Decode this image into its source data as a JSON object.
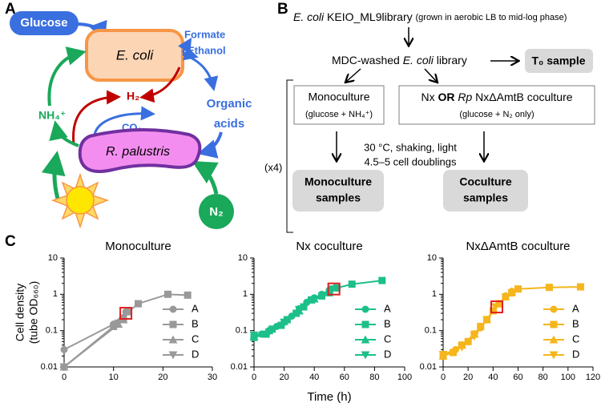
{
  "panel_a": {
    "label": "A",
    "glucose": "Glucose",
    "ecoli": "E. coli",
    "formate": "Formate",
    "ethanol": "Ethanol",
    "organic_acids": [
      "Organic",
      "acids"
    ],
    "h2": "H₂",
    "co2": "CO₂",
    "nh4": "NH₄⁺",
    "rpal": "R. palustris",
    "n2": "N₂"
  },
  "panel_b": {
    "label": "B",
    "library": [
      "E. coli",
      " KEIO_ML9library ",
      "(grown in aerobic LB to mid-log phase)"
    ],
    "washed": [
      "MDC-washed ",
      "E. coli",
      " library"
    ],
    "t0": "T₀ sample",
    "mono_box": [
      "Monoculture",
      "(glucose + NH₄⁺)"
    ],
    "co_box": [
      "Nx ",
      "OR",
      " Rp",
      " NxΔAmtB coculture",
      "(glucose + N₂ only)"
    ],
    "repeat": "(x4)",
    "conditions": [
      "30 °C, shaking, light",
      "4.5–5 cell doublings"
    ],
    "mono_samples": [
      "Monoculture",
      "samples"
    ],
    "co_samples": [
      "Coculture",
      "samples"
    ]
  },
  "panel_c_label": "C",
  "chart_data": [
    {
      "type": "line",
      "title": "Monoculture",
      "ylabel": [
        "Cell density",
        "(tube OD₆₆₀)"
      ],
      "log_y": true,
      "xlim": [
        0,
        30
      ],
      "xticks": [
        0,
        10,
        20,
        30
      ],
      "ylim": [
        0.01,
        10
      ],
      "yticks": [
        0.01,
        0.1,
        1,
        10
      ],
      "legend": "lower right",
      "series": [
        {
          "name": "A",
          "color": "#999999",
          "marker": "circle",
          "x": [
            0,
            10,
            12.5
          ],
          "values": [
            0.03,
            0.15,
            0.33
          ]
        },
        {
          "name": "B",
          "color": "#999999",
          "marker": "square",
          "x": [
            0,
            10,
            12,
            13,
            15,
            21,
            25
          ],
          "values": [
            0.01,
            0.13,
            0.2,
            0.33,
            0.55,
            1.0,
            0.95
          ]
        },
        {
          "name": "C",
          "color": "#999999",
          "marker": "triangle-up",
          "x": [
            0,
            11,
            12
          ],
          "values": [
            0.01,
            0.15,
            0.2
          ]
        },
        {
          "name": "D",
          "color": "#999999",
          "marker": "triangle-down",
          "x": [
            0,
            11,
            12
          ],
          "values": [
            0.01,
            0.16,
            0.22
          ]
        }
      ],
      "sampled_at": {
        "x": 12.5,
        "y": 0.3,
        "color": "#e02020"
      }
    },
    {
      "type": "line",
      "title": "Nx coculture",
      "xlabel": "Time (h)",
      "log_y": true,
      "xlim": [
        0,
        100
      ],
      "xticks": [
        0,
        20,
        40,
        60,
        80,
        100
      ],
      "ylim": [
        0.01,
        10
      ],
      "yticks": [
        0.01,
        0.1,
        1,
        10
      ],
      "legend": "lower right",
      "series": [
        {
          "name": "A",
          "color": "#1dbf8a",
          "marker": "circle",
          "x": [
            0,
            5,
            10,
            15,
            20,
            25,
            30,
            35,
            40,
            45,
            50,
            55
          ],
          "values": [
            0.07,
            0.08,
            0.1,
            0.13,
            0.17,
            0.25,
            0.4,
            0.6,
            0.8,
            1.0,
            1.3,
            1.5
          ]
        },
        {
          "name": "B",
          "color": "#1dbf8a",
          "marker": "square",
          "x": [
            0,
            8,
            12,
            18,
            22,
            28,
            33,
            38,
            45,
            50,
            55,
            65,
            85
          ],
          "values": [
            0.065,
            0.08,
            0.11,
            0.14,
            0.2,
            0.3,
            0.45,
            0.7,
            0.9,
            1.1,
            1.5,
            1.9,
            2.4
          ]
        },
        {
          "name": "C",
          "color": "#1dbf8a",
          "marker": "triangle-up",
          "x": [
            0,
            10,
            20,
            30,
            40,
            50
          ],
          "values": [
            0.07,
            0.1,
            0.18,
            0.35,
            0.75,
            1.3
          ]
        },
        {
          "name": "D",
          "color": "#1dbf8a",
          "marker": "triangle-down",
          "x": [
            0,
            10,
            20,
            30,
            40,
            52
          ],
          "values": [
            0.075,
            0.09,
            0.17,
            0.38,
            0.7,
            1.4
          ]
        }
      ],
      "sampled_at": {
        "x": 53,
        "y": 1.4,
        "color": "#e02020"
      }
    },
    {
      "type": "line",
      "title": "NxΔAmtB coculture",
      "log_y": true,
      "xlim": [
        0,
        120
      ],
      "xticks": [
        0,
        20,
        40,
        60,
        80,
        100,
        120
      ],
      "ylim": [
        0.01,
        10
      ],
      "yticks": [
        0.01,
        0.1,
        1,
        10
      ],
      "legend": "lower right",
      "series": [
        {
          "name": "A",
          "color": "#f5b51c",
          "marker": "circle",
          "x": [
            0,
            10,
            20,
            30,
            40,
            45,
            50,
            55,
            60
          ],
          "values": [
            0.02,
            0.03,
            0.05,
            0.12,
            0.35,
            0.55,
            0.9,
            1.2,
            1.4
          ]
        },
        {
          "name": "B",
          "color": "#f5b51c",
          "marker": "square",
          "x": [
            0,
            8,
            15,
            20,
            25,
            30,
            35,
            40,
            45,
            50,
            55,
            60,
            85,
            110
          ],
          "values": [
            0.02,
            0.025,
            0.04,
            0.05,
            0.08,
            0.13,
            0.2,
            0.35,
            0.55,
            0.85,
            1.1,
            1.4,
            1.55,
            1.6
          ]
        },
        {
          "name": "C",
          "color": "#f5b51c",
          "marker": "triangle-up",
          "x": [
            0,
            15,
            25,
            35,
            45,
            55
          ],
          "values": [
            0.02,
            0.04,
            0.08,
            0.2,
            0.55,
            1.2
          ]
        },
        {
          "name": "D",
          "color": "#f5b51c",
          "marker": "triangle-down",
          "x": [
            0,
            15,
            25,
            35,
            42,
            55
          ],
          "values": [
            0.022,
            0.035,
            0.07,
            0.2,
            0.45,
            1.1
          ]
        }
      ],
      "sampled_at": {
        "x": 43,
        "y": 0.45,
        "color": "#e02020"
      }
    }
  ]
}
